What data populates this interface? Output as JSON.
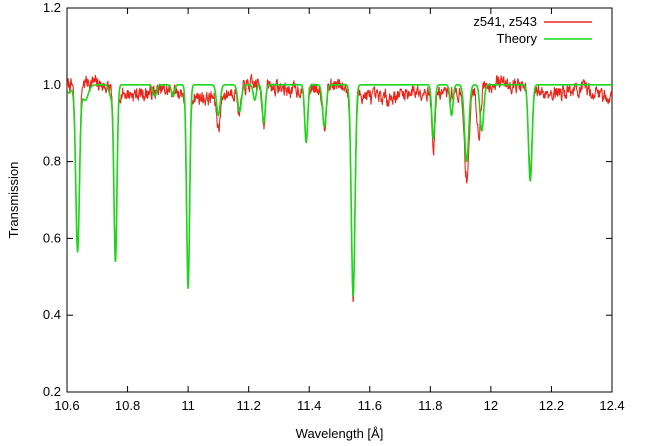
{
  "chart_data": {
    "type": "line",
    "xlabel": "Wavelength [Å]",
    "ylabel": "Transmission",
    "xlim": [
      10.6,
      12.4
    ],
    "ylim": [
      0.2,
      1.2
    ],
    "xticks": [
      10.6,
      10.8,
      11,
      11.2,
      11.4,
      11.6,
      11.8,
      12,
      12.2,
      12.4
    ],
    "xtick_labels": [
      "10.6",
      "10.8",
      "11",
      "11.2",
      "11.4",
      "11.6",
      "11.8",
      "12",
      "12.2",
      "12.4"
    ],
    "yticks": [
      0.2,
      0.4,
      0.6,
      0.8,
      1.0,
      1.2
    ],
    "ytick_labels": [
      "0.2",
      "0.4",
      "0.6",
      "0.8",
      "1.0",
      "1.2"
    ],
    "grid": false,
    "legend_position": "top-right",
    "series": [
      {
        "name": "z541, z543",
        "color": "#e8261a",
        "style": "noisy-observed",
        "seed": 7,
        "noise": 0.035,
        "baseline": 0.985,
        "lines": [
          {
            "x": 10.635,
            "depth": 0.43,
            "width": 0.006
          },
          {
            "x": 10.76,
            "depth": 0.45,
            "width": 0.005
          },
          {
            "x": 11.0,
            "depth": 0.51,
            "width": 0.005
          },
          {
            "x": 11.1,
            "depth": 0.08,
            "width": 0.006
          },
          {
            "x": 11.17,
            "depth": 0.06,
            "width": 0.006
          },
          {
            "x": 11.25,
            "depth": 0.1,
            "width": 0.005
          },
          {
            "x": 11.39,
            "depth": 0.13,
            "width": 0.005
          },
          {
            "x": 11.45,
            "depth": 0.1,
            "width": 0.006
          },
          {
            "x": 11.545,
            "depth": 0.54,
            "width": 0.006
          },
          {
            "x": 11.81,
            "depth": 0.15,
            "width": 0.005
          },
          {
            "x": 11.92,
            "depth": 0.22,
            "width": 0.008
          },
          {
            "x": 11.96,
            "depth": 0.12,
            "width": 0.006
          },
          {
            "x": 12.13,
            "depth": 0.22,
            "width": 0.006
          }
        ]
      },
      {
        "name": "Theory",
        "color": "#18d818",
        "style": "model",
        "baseline": 1.0,
        "lines": [
          {
            "x": 10.57,
            "depth": 0.04,
            "width": 0.03
          },
          {
            "x": 10.635,
            "depth": 0.43,
            "width": 0.006
          },
          {
            "x": 10.66,
            "depth": 0.04,
            "width": 0.01
          },
          {
            "x": 10.745,
            "depth": 0.03,
            "width": 0.006
          },
          {
            "x": 10.76,
            "depth": 0.46,
            "width": 0.005
          },
          {
            "x": 10.89,
            "depth": 0.03,
            "width": 0.006
          },
          {
            "x": 10.95,
            "depth": 0.03,
            "width": 0.005
          },
          {
            "x": 11.0,
            "depth": 0.53,
            "width": 0.005
          },
          {
            "x": 11.1,
            "depth": 0.08,
            "width": 0.006
          },
          {
            "x": 11.17,
            "depth": 0.07,
            "width": 0.006
          },
          {
            "x": 11.22,
            "depth": 0.04,
            "width": 0.005
          },
          {
            "x": 11.25,
            "depth": 0.1,
            "width": 0.005
          },
          {
            "x": 11.39,
            "depth": 0.15,
            "width": 0.005
          },
          {
            "x": 11.45,
            "depth": 0.11,
            "width": 0.006
          },
          {
            "x": 11.545,
            "depth": 0.55,
            "width": 0.006
          },
          {
            "x": 11.81,
            "depth": 0.14,
            "width": 0.005
          },
          {
            "x": 11.87,
            "depth": 0.08,
            "width": 0.005
          },
          {
            "x": 11.92,
            "depth": 0.2,
            "width": 0.007
          },
          {
            "x": 11.97,
            "depth": 0.12,
            "width": 0.006
          },
          {
            "x": 12.13,
            "depth": 0.25,
            "width": 0.006
          }
        ]
      }
    ]
  }
}
